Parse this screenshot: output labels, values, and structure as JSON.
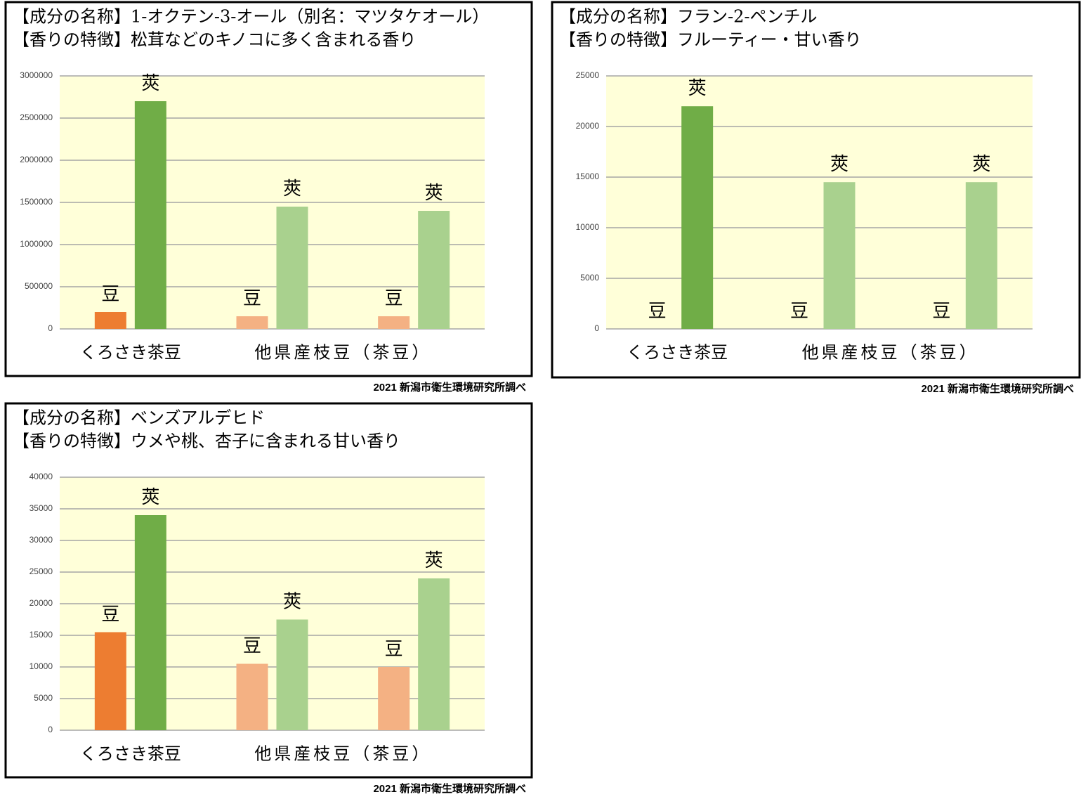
{
  "chart_data": [
    {
      "type": "bar",
      "title": "【成分の名称】1-オクテン-3-オール（別名：マツタケオール）",
      "subtitle": "【香りの特徴】松茸などのキノコに多く含まれる香り",
      "categories": [
        null,
        null,
        null
      ],
      "category_groups": [
        {
          "label": "くろさき茶豆",
          "span": 1
        },
        {
          "label": "他県産枝豆（茶豆）",
          "span": 2
        }
      ],
      "series": [
        {
          "name": "豆",
          "colors": [
            "#ed7d31",
            "#f4b183",
            "#f4b183"
          ],
          "values": [
            200000,
            150000,
            150000
          ]
        },
        {
          "name": "莢",
          "colors": [
            "#70ad47",
            "#a9d18e",
            "#a9d18e"
          ],
          "values": [
            2700000,
            1450000,
            1400000
          ]
        }
      ],
      "ylim": [
        0,
        3000000
      ],
      "yticks": [
        0,
        500000,
        1000000,
        1500000,
        2000000,
        2500000,
        3000000
      ],
      "grid": true,
      "source": "2021 新潟市衛生環境研究所調べ"
    },
    {
      "type": "bar",
      "title": "【成分の名称】フラン-2-ペンチル",
      "subtitle": "【香りの特徴】フルーティー・甘い香り",
      "categories": [
        null,
        null,
        null
      ],
      "category_groups": [
        {
          "label": "くろさき茶豆",
          "span": 1
        },
        {
          "label": "他県産枝豆（茶豆）",
          "span": 2
        }
      ],
      "series": [
        {
          "name": "豆",
          "colors": [
            "#ed7d31",
            "#f4b183",
            "#f4b183"
          ],
          "values": [
            0,
            0,
            0
          ]
        },
        {
          "name": "莢",
          "colors": [
            "#70ad47",
            "#a9d18e",
            "#a9d18e"
          ],
          "values": [
            22000,
            14500,
            14500
          ]
        }
      ],
      "ylim": [
        0,
        25000
      ],
      "yticks": [
        0,
        5000,
        10000,
        15000,
        20000,
        25000
      ],
      "grid": true,
      "source": "2021 新潟市衛生環境研究所調べ"
    },
    {
      "type": "bar",
      "title": "【成分の名称】ベンズアルデヒド",
      "subtitle": "【香りの特徴】ウメや桃、杏子に含まれる甘い香り",
      "categories": [
        null,
        null,
        null
      ],
      "category_groups": [
        {
          "label": "くろさき茶豆",
          "span": 1
        },
        {
          "label": "他県産枝豆（茶豆）",
          "span": 2
        }
      ],
      "series": [
        {
          "name": "豆",
          "colors": [
            "#ed7d31",
            "#f4b183",
            "#f4b183"
          ],
          "values": [
            15500,
            10500,
            10000
          ]
        },
        {
          "name": "莢",
          "colors": [
            "#70ad47",
            "#a9d18e",
            "#a9d18e"
          ],
          "values": [
            34000,
            17500,
            24000
          ]
        }
      ],
      "ylim": [
        0,
        40000
      ],
      "yticks": [
        0,
        5000,
        10000,
        15000,
        20000,
        25000,
        30000,
        35000,
        40000
      ],
      "grid": true,
      "source": "2021 新潟市衛生環境研究所調べ"
    }
  ]
}
